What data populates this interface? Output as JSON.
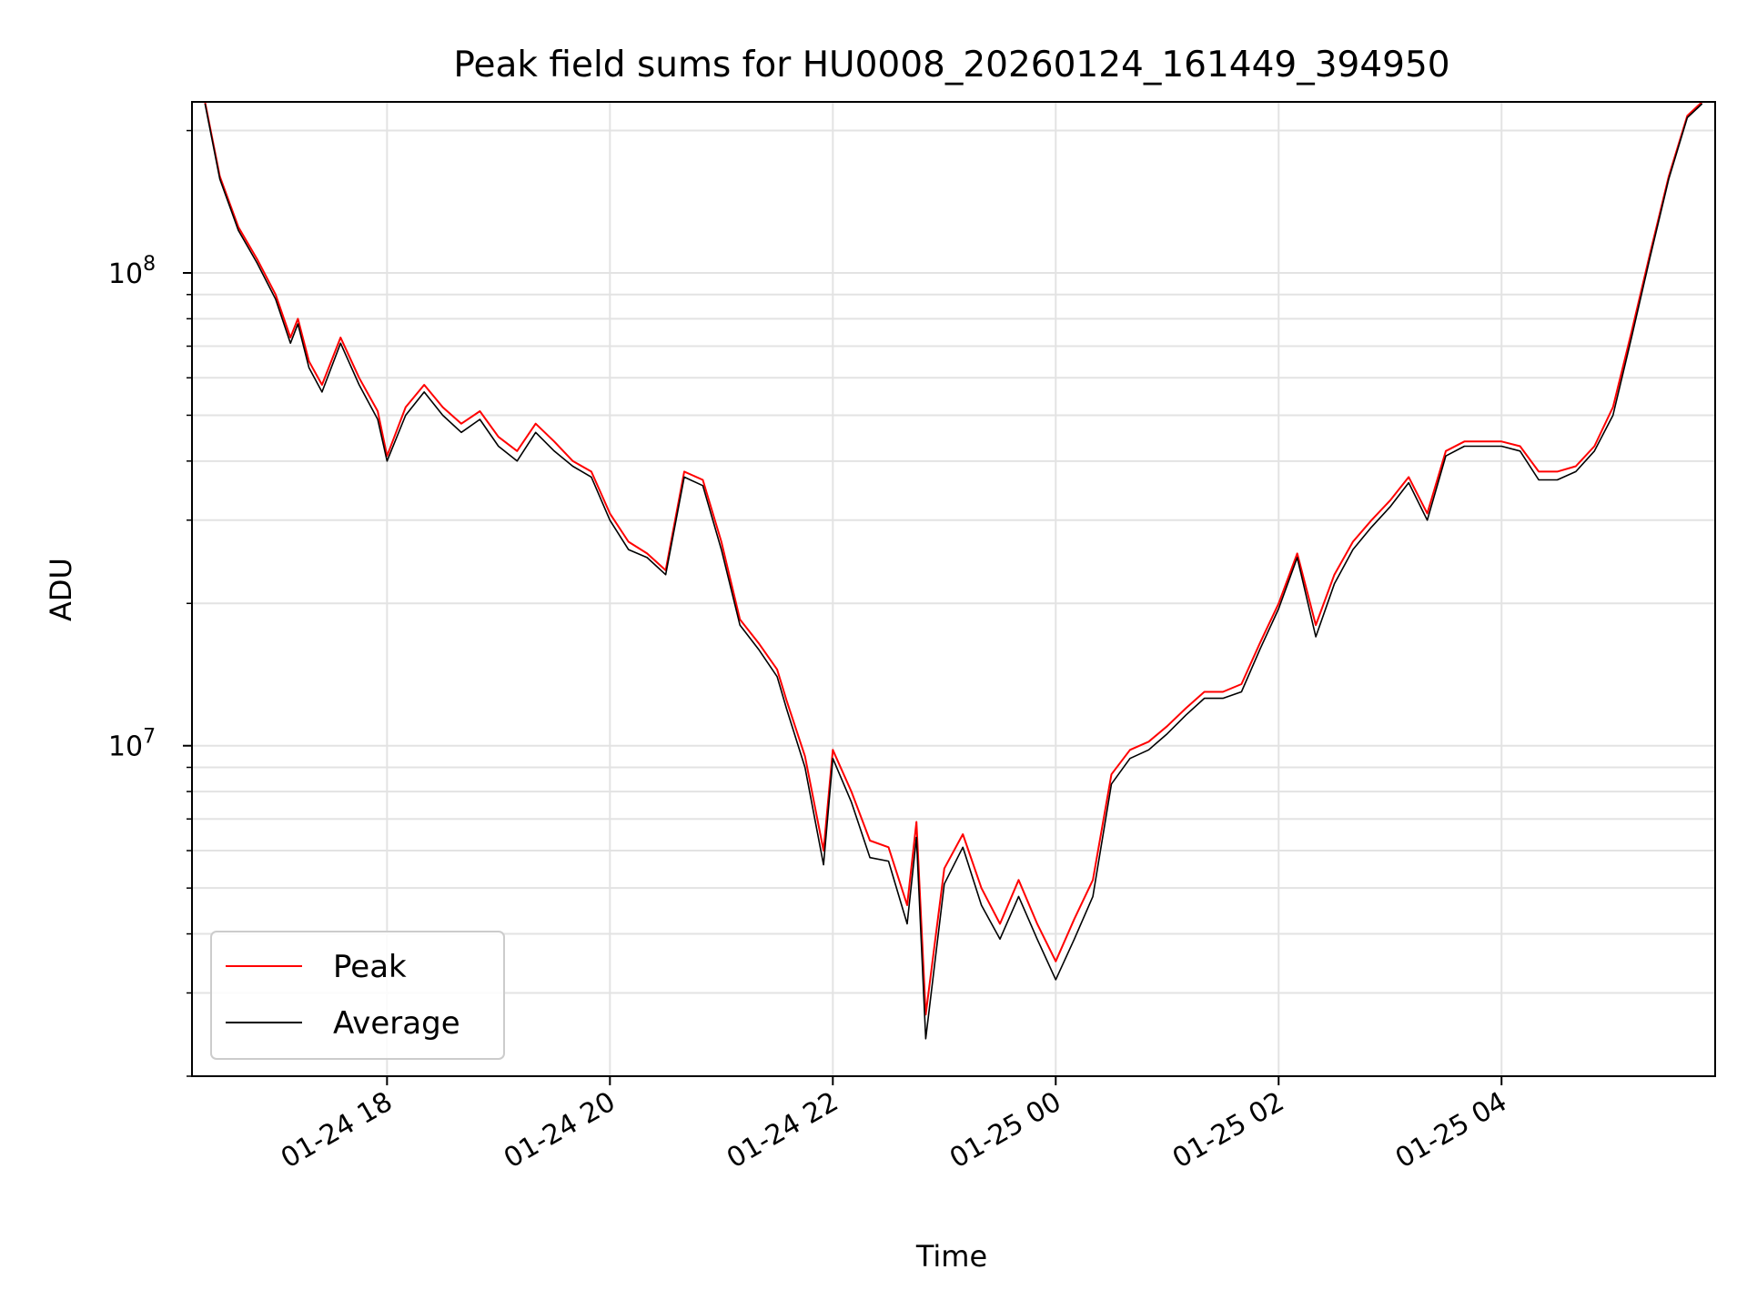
{
  "chart_data": {
    "type": "line",
    "title": "Peak field sums for HU0008_20260124_161449_394950",
    "xlabel": "Time",
    "ylabel": "ADU",
    "yscale": "log",
    "ylim": [
      2000000,
      230000000
    ],
    "xlim": [
      "2026-01-24 16:15",
      "2026-01-25 05:55"
    ],
    "x_ticks": [
      {
        "value": "2026-01-24 18:00",
        "label": "01-24 18"
      },
      {
        "value": "2026-01-24 20:00",
        "label": "01-24 20"
      },
      {
        "value": "2026-01-24 22:00",
        "label": "01-24 22"
      },
      {
        "value": "2026-01-25 00:00",
        "label": "01-25 00"
      },
      {
        "value": "2026-01-25 02:00",
        "label": "01-25 02"
      },
      {
        "value": "2026-01-25 04:00",
        "label": "01-25 04"
      }
    ],
    "y_ticks": [
      {
        "value": 10000000,
        "base": "10",
        "exp": "7"
      },
      {
        "value": 100000000,
        "base": "10",
        "exp": "8"
      }
    ],
    "grid": true,
    "legend_position": "lower-left",
    "x": [
      "2026-01-24 16:22",
      "2026-01-24 16:30",
      "2026-01-24 16:40",
      "2026-01-24 16:50",
      "2026-01-24 17:00",
      "2026-01-24 17:08",
      "2026-01-24 17:12",
      "2026-01-24 17:18",
      "2026-01-24 17:25",
      "2026-01-24 17:35",
      "2026-01-24 17:45",
      "2026-01-24 17:55",
      "2026-01-24 18:00",
      "2026-01-24 18:10",
      "2026-01-24 18:20",
      "2026-01-24 18:30",
      "2026-01-24 18:40",
      "2026-01-24 18:50",
      "2026-01-24 19:00",
      "2026-01-24 19:10",
      "2026-01-24 19:20",
      "2026-01-24 19:30",
      "2026-01-24 19:40",
      "2026-01-24 19:50",
      "2026-01-24 20:00",
      "2026-01-24 20:10",
      "2026-01-24 20:20",
      "2026-01-24 20:30",
      "2026-01-24 20:40",
      "2026-01-24 20:50",
      "2026-01-24 21:00",
      "2026-01-24 21:10",
      "2026-01-24 21:20",
      "2026-01-24 21:30",
      "2026-01-24 21:35",
      "2026-01-24 21:45",
      "2026-01-24 21:55",
      "2026-01-24 22:00",
      "2026-01-24 22:10",
      "2026-01-24 22:20",
      "2026-01-24 22:30",
      "2026-01-24 22:40",
      "2026-01-24 22:45",
      "2026-01-24 22:50",
      "2026-01-24 23:00",
      "2026-01-24 23:10",
      "2026-01-24 23:20",
      "2026-01-24 23:30",
      "2026-01-24 23:40",
      "2026-01-24 23:50",
      "2026-01-25 00:00",
      "2026-01-25 00:10",
      "2026-01-25 00:20",
      "2026-01-25 00:30",
      "2026-01-25 00:40",
      "2026-01-25 00:50",
      "2026-01-25 01:00",
      "2026-01-25 01:10",
      "2026-01-25 01:20",
      "2026-01-25 01:30",
      "2026-01-25 01:40",
      "2026-01-25 01:50",
      "2026-01-25 02:00",
      "2026-01-25 02:10",
      "2026-01-25 02:20",
      "2026-01-25 02:30",
      "2026-01-25 02:40",
      "2026-01-25 02:50",
      "2026-01-25 03:00",
      "2026-01-25 03:10",
      "2026-01-25 03:20",
      "2026-01-25 03:30",
      "2026-01-25 03:40",
      "2026-01-25 03:50",
      "2026-01-25 04:00",
      "2026-01-25 04:10",
      "2026-01-25 04:20",
      "2026-01-25 04:30",
      "2026-01-25 04:40",
      "2026-01-25 04:50",
      "2026-01-25 05:00",
      "2026-01-25 05:10",
      "2026-01-25 05:20",
      "2026-01-25 05:30",
      "2026-01-25 05:40",
      "2026-01-25 05:48"
    ],
    "series": [
      {
        "name": "Peak",
        "color": "#ff0000",
        "values": [
          230000000,
          160000000,
          125000000,
          107000000,
          90000000,
          73000000,
          80000000,
          65000000,
          58000000,
          73000000,
          60000000,
          51000000,
          41000000,
          52000000,
          58000000,
          52000000,
          48000000,
          51000000,
          45000000,
          42000000,
          48000000,
          44000000,
          40000000,
          38000000,
          31000000,
          27000000,
          25500000,
          23500000,
          38000000,
          36500000,
          27000000,
          18500000,
          16500000,
          14500000,
          12500000,
          9500000,
          6000000,
          9800000,
          8000000,
          6300000,
          6100000,
          4600000,
          6900000,
          2700000,
          5500000,
          6500000,
          5000000,
          4200000,
          5200000,
          4200000,
          3500000,
          4300000,
          5200000,
          8700000,
          9800000,
          10200000,
          11000000,
          12000000,
          13000000,
          13000000,
          13500000,
          16500000,
          20000000,
          25500000,
          18000000,
          23000000,
          27000000,
          30000000,
          33000000,
          37000000,
          31000000,
          42000000,
          44000000,
          44000000,
          44000000,
          43000000,
          38000000,
          38000000,
          39000000,
          43000000,
          52000000,
          75000000,
          110000000,
          160000000,
          215000000,
          230000000
        ]
      },
      {
        "name": "Average",
        "color": "#000000",
        "values": [
          228000000,
          158000000,
          123000000,
          105000000,
          88000000,
          71000000,
          78000000,
          63000000,
          56000000,
          71000000,
          58000000,
          49000000,
          40000000,
          50000000,
          56000000,
          50000000,
          46000000,
          49000000,
          43000000,
          40000000,
          46000000,
          42000000,
          39000000,
          37000000,
          30000000,
          26000000,
          25000000,
          23000000,
          37000000,
          35500000,
          26000000,
          18000000,
          16000000,
          14000000,
          12000000,
          9000000,
          5600000,
          9400000,
          7600000,
          5800000,
          5700000,
          4200000,
          6400000,
          2400000,
          5100000,
          6100000,
          4600000,
          3900000,
          4800000,
          3900000,
          3200000,
          3900000,
          4800000,
          8300000,
          9400000,
          9800000,
          10600000,
          11600000,
          12600000,
          12600000,
          13000000,
          16000000,
          19500000,
          25000000,
          17000000,
          22000000,
          26000000,
          29000000,
          32000000,
          36000000,
          30000000,
          41000000,
          43000000,
          43000000,
          43000000,
          42000000,
          36500000,
          36500000,
          38000000,
          42000000,
          50000000,
          73000000,
          108000000,
          158000000,
          213000000,
          228000000
        ]
      }
    ]
  }
}
